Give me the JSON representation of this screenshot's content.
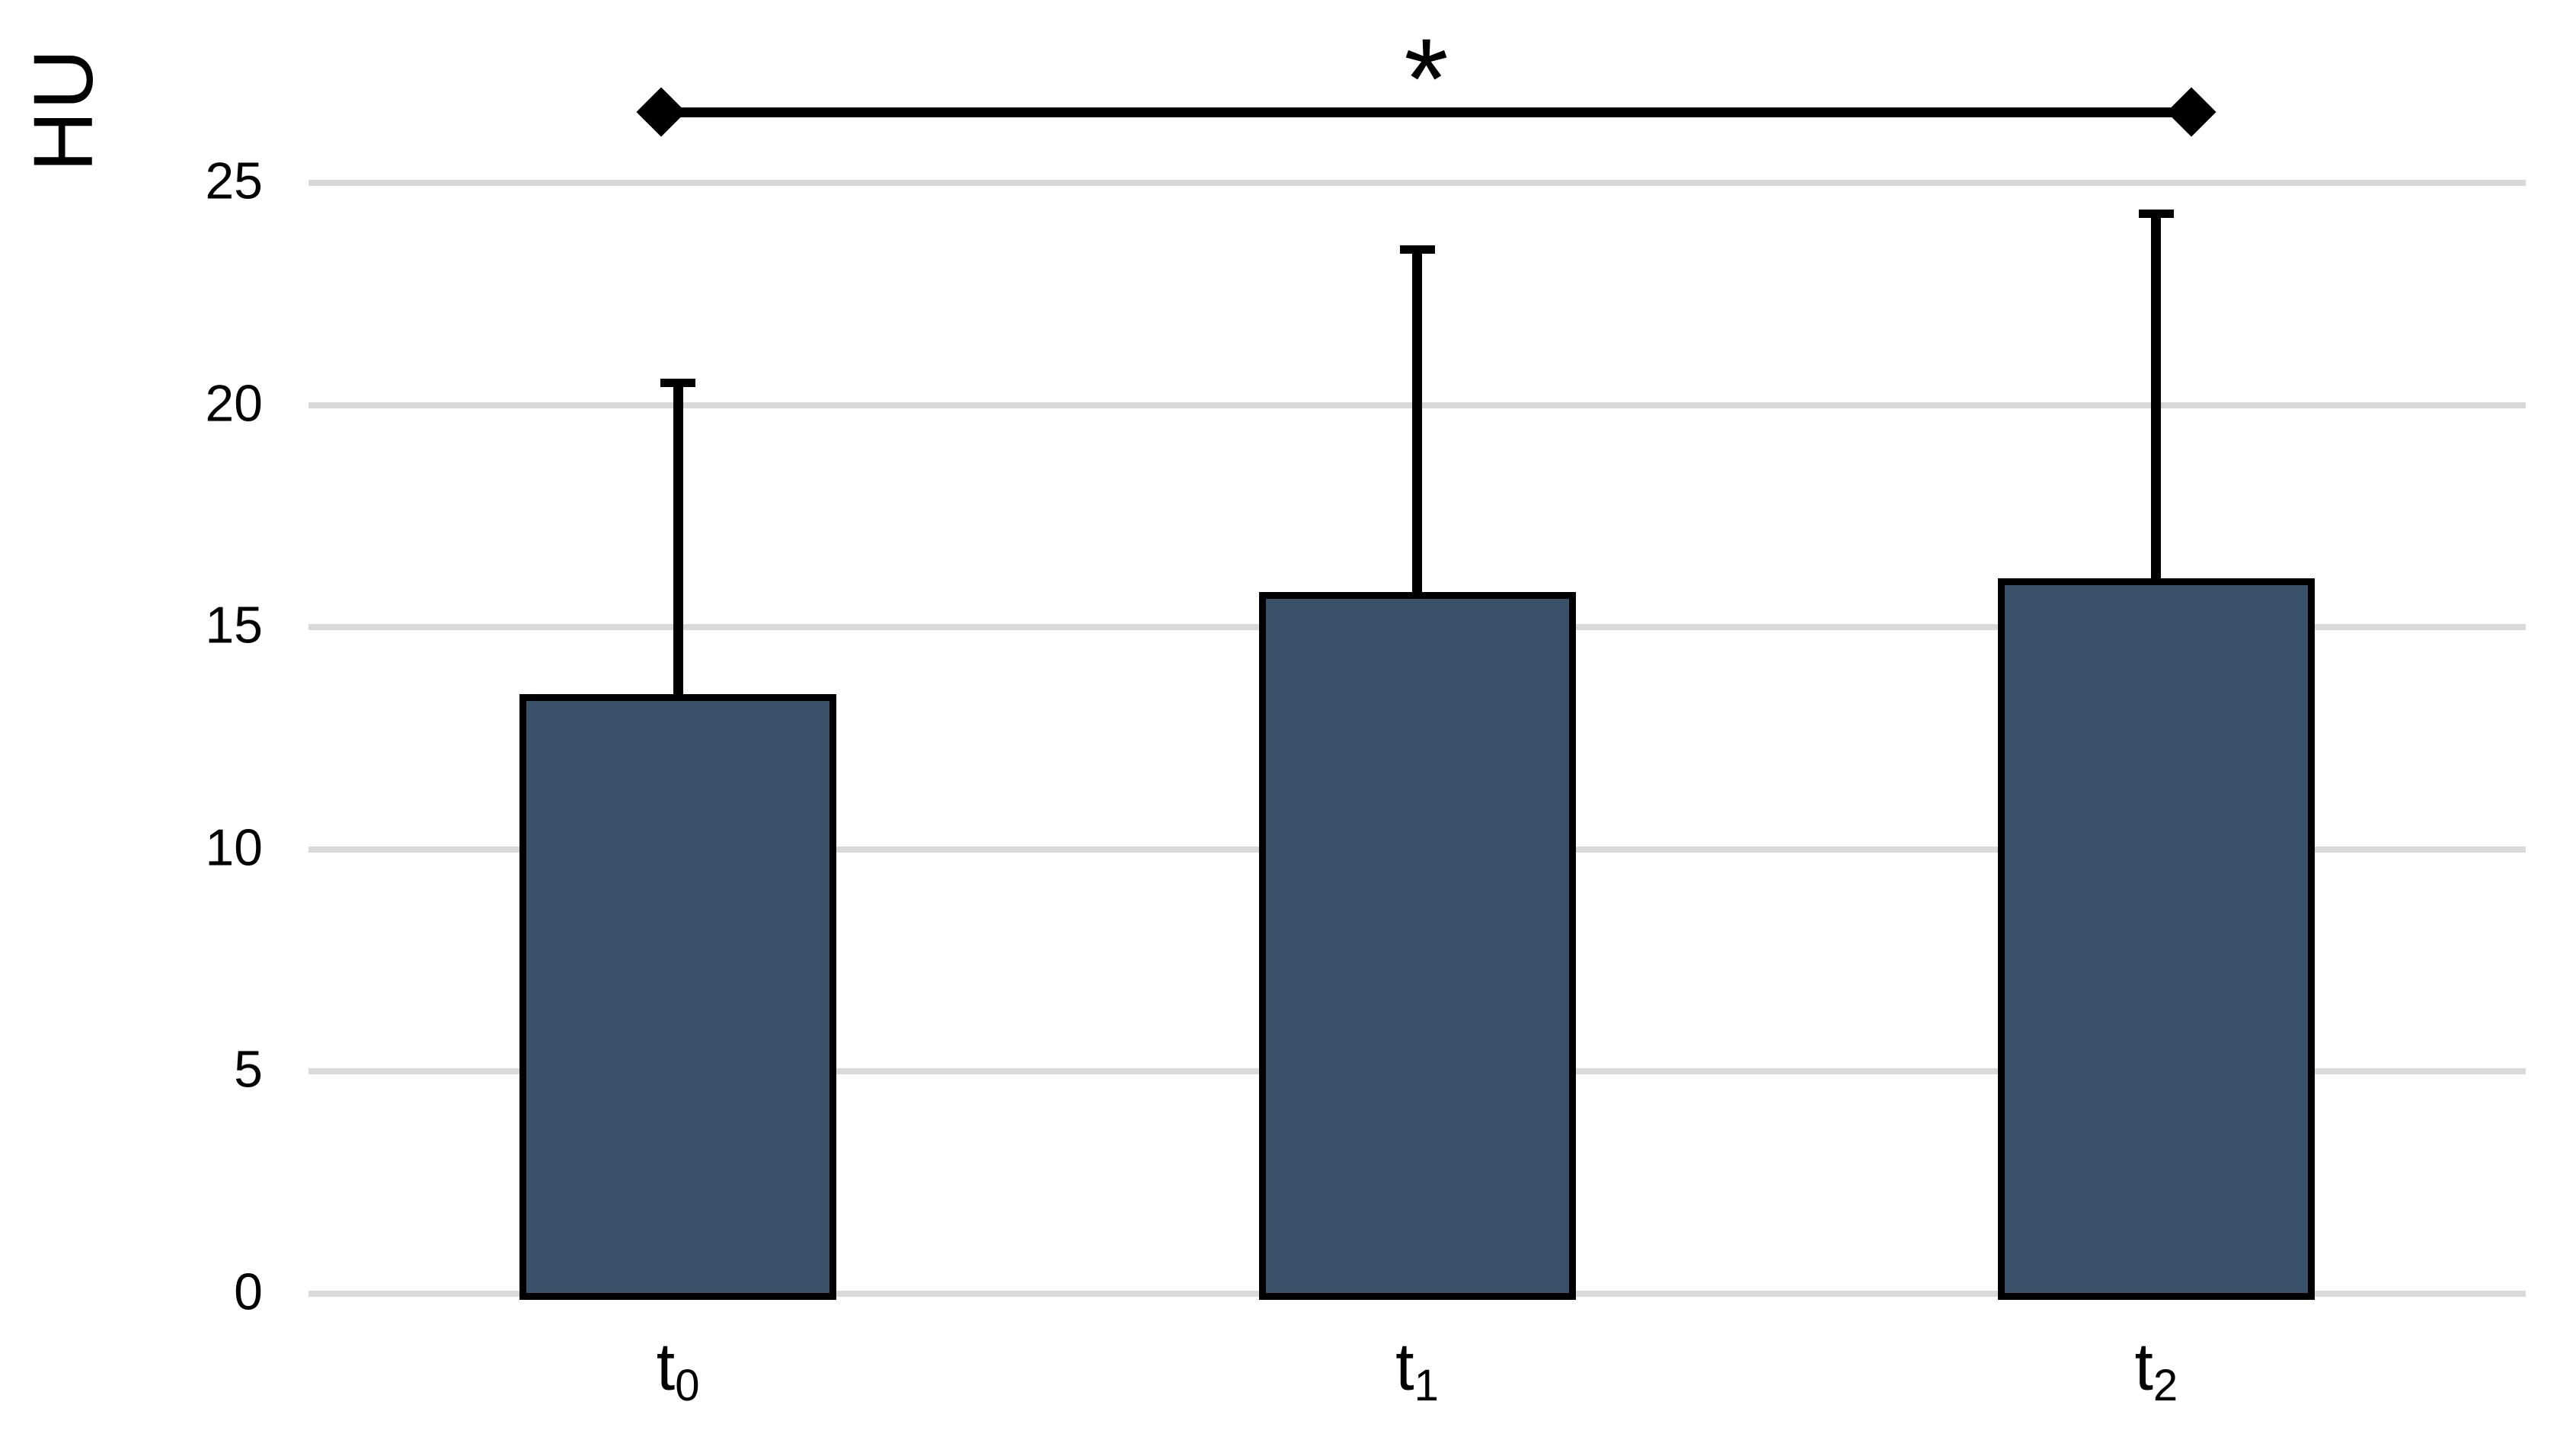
{
  "chart_data": {
    "type": "bar",
    "title": "",
    "ylabel": "HU",
    "xlabel": "",
    "categories": [
      "t0",
      "t1",
      "t2"
    ],
    "category_parts": [
      {
        "base": "t",
        "sub": "0"
      },
      {
        "base": "t",
        "sub": "1"
      },
      {
        "base": "t",
        "sub": "2"
      }
    ],
    "values": [
      13.5,
      15.8,
      16.1
    ],
    "error_plus": [
      7.1,
      7.8,
      8.3
    ],
    "error_bar_tops": [
      20.6,
      23.6,
      24.4
    ],
    "error_direction": "plus-only",
    "ylim": [
      0,
      25
    ],
    "yticks": [
      0,
      5,
      10,
      15,
      20,
      25
    ],
    "grid": true,
    "legend": "none",
    "bar_fill_color": "#3A5269",
    "bar_border_color": "#000000",
    "gridline_color": "#D9D9D9",
    "significance": {
      "label": "*",
      "from_category": "t0",
      "to_category": "t2",
      "marker": "diamond-ends"
    }
  }
}
